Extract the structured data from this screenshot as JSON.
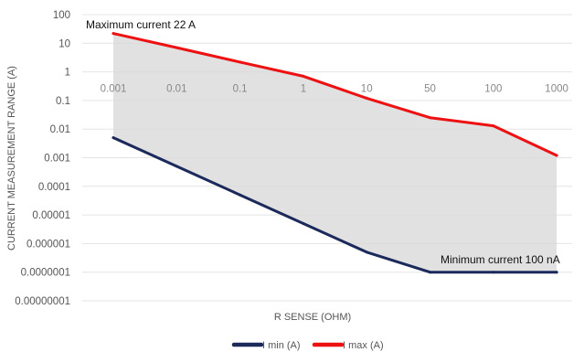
{
  "chart_data": {
    "type": "line",
    "title": "",
    "xlabel": "R SENSE (OHM)",
    "ylabel": "CURRENT MEASUREMENT RANGE (A)",
    "y_scale": "log",
    "ylim": [
      1e-08,
      100
    ],
    "y_ticks": [
      "100",
      "10",
      "1",
      "0.1",
      "0.01",
      "0.001",
      "0.0001",
      "0.00001",
      "0.000001",
      "0.0000001",
      "0.00000001"
    ],
    "categories": [
      "0.001",
      "0.01",
      "0.1",
      "1",
      "10",
      "50",
      "100",
      "1000"
    ],
    "grid": true,
    "shaded_region_between_series": true,
    "legend_position": "bottom",
    "series": [
      {
        "name": "I min (A)",
        "color": "#1b2a5a",
        "values": [
          0.005,
          0.0005,
          5e-05,
          5e-06,
          5e-07,
          1e-07,
          1e-07,
          1e-07
        ]
      },
      {
        "name": "I max (A)",
        "color": "#ee1111",
        "values": [
          22,
          7,
          2.2,
          0.7,
          0.12,
          0.025,
          0.013,
          0.0012
        ]
      }
    ],
    "annotations": [
      {
        "text": "Maximum current 22 A",
        "near": "top-left"
      },
      {
        "text": "Minimum current 100 nA",
        "near": "bottom-right"
      }
    ]
  }
}
